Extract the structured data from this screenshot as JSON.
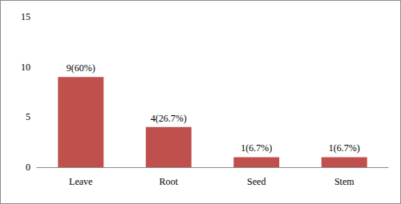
{
  "chart_data": {
    "type": "bar",
    "categories": [
      "Leave",
      "Root",
      "Seed",
      "Stem"
    ],
    "values": [
      9,
      4,
      1,
      1
    ],
    "value_labels": [
      "9(60%)",
      "4(26.7%)",
      "1(6.7%)",
      "1(6.7%)"
    ],
    "data_labels": true,
    "color": "#c0504d",
    "ylim": [
      0,
      15
    ],
    "yticks": [
      0,
      5,
      10,
      15
    ],
    "grid": false
  }
}
